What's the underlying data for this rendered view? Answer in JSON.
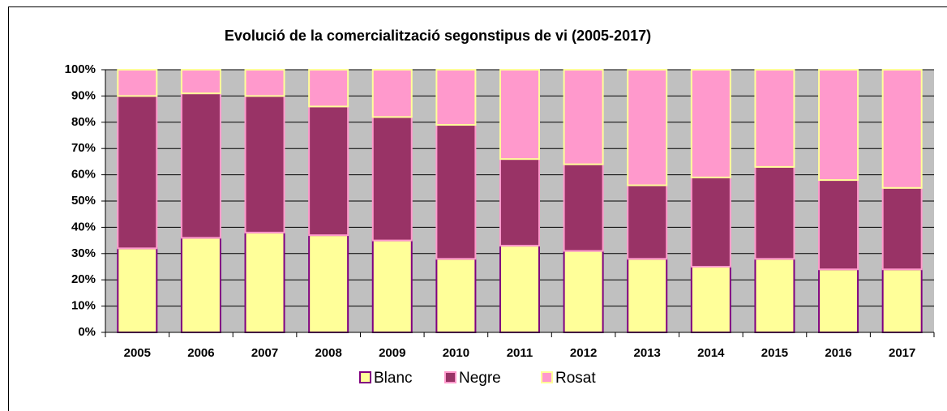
{
  "chart_data": {
    "type": "stacked_bar",
    "title": "Evolució de la comercialització segonstipus de vi (2005-2017)",
    "categories": [
      "2005",
      "2006",
      "2007",
      "2008",
      "2009",
      "2010",
      "2011",
      "2012",
      "2013",
      "2014",
      "2015",
      "2016",
      "2017"
    ],
    "series": [
      {
        "name": "Blanc",
        "color": "#ffff99",
        "edgecolor": "#800080",
        "values": [
          32,
          36,
          38,
          37,
          35,
          28,
          33,
          31,
          28,
          25,
          28,
          24,
          24
        ]
      },
      {
        "name": "Negre",
        "color": "#993366",
        "edgecolor": "#ff99cc",
        "values": [
          58,
          55,
          52,
          49,
          47,
          51,
          33,
          33,
          28,
          34,
          35,
          34,
          31
        ]
      },
      {
        "name": "Rosat",
        "color": "#ff99cc",
        "edgecolor": "#ffff99",
        "values": [
          10,
          9,
          10,
          14,
          18,
          21,
          34,
          36,
          44,
          41,
          37,
          42,
          45
        ]
      }
    ],
    "ylim": [
      0,
      100
    ],
    "yticks": [
      {
        "value": 0,
        "label": "0%"
      },
      {
        "value": 10,
        "label": "10%"
      },
      {
        "value": 20,
        "label": "20%"
      },
      {
        "value": 30,
        "label": "30%"
      },
      {
        "value": 40,
        "label": "40%"
      },
      {
        "value": 50,
        "label": "50%"
      },
      {
        "value": 60,
        "label": "60%"
      },
      {
        "value": 70,
        "label": "70%"
      },
      {
        "value": 80,
        "label": "80%"
      },
      {
        "value": 90,
        "label": "90%"
      },
      {
        "value": 100,
        "label": "100%"
      }
    ],
    "grid": true,
    "legend": "bottom",
    "plot_background": "#c0c0c0"
  }
}
